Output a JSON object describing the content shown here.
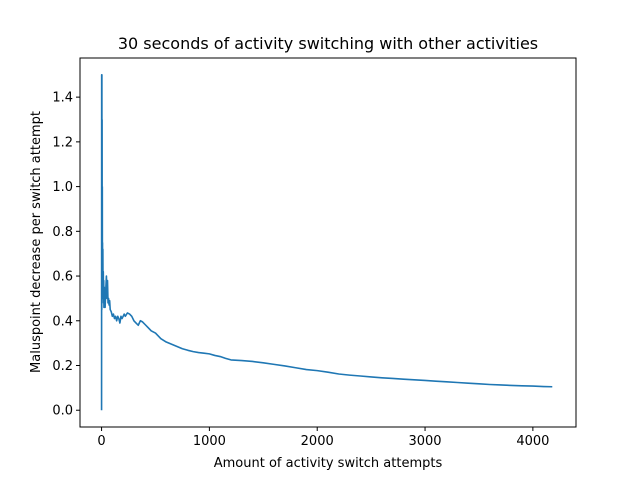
{
  "chart_data": {
    "type": "line",
    "title": "30 seconds of activity switching with other activities",
    "xlabel": "Amount of activity switch attempts",
    "ylabel": "Maluspoint decrease per switch attempt",
    "xlim": [
      -200,
      4400
    ],
    "ylim": [
      -0.075,
      1.575
    ],
    "x_ticks": [
      0,
      1000,
      2000,
      3000,
      4000
    ],
    "x_tick_labels": [
      "0",
      "1000",
      "2000",
      "3000",
      "4000"
    ],
    "y_ticks": [
      0.0,
      0.2,
      0.4,
      0.6,
      0.8,
      1.0,
      1.2,
      1.4
    ],
    "y_tick_labels": [
      "0.0",
      "0.2",
      "0.4",
      "0.6",
      "0.8",
      "1.0",
      "1.2",
      "1.4"
    ],
    "grid": false,
    "series": [
      {
        "color": "#1f77b4",
        "x": [
          0,
          1,
          2,
          3,
          4,
          5,
          6,
          7,
          8,
          9,
          10,
          12,
          14,
          16,
          18,
          20,
          22,
          25,
          28,
          30,
          33,
          36,
          40,
          45,
          50,
          55,
          60,
          65,
          70,
          75,
          80,
          90,
          100,
          110,
          120,
          130,
          140,
          150,
          160,
          170,
          180,
          190,
          200,
          210,
          220,
          240,
          260,
          280,
          300,
          320,
          340,
          360,
          380,
          400,
          430,
          460,
          500,
          550,
          600,
          650,
          700,
          750,
          800,
          850,
          900,
          950,
          1000,
          1050,
          1100,
          1150,
          1200,
          1300,
          1400,
          1500,
          1600,
          1700,
          1800,
          1900,
          2000,
          2100,
          2200,
          2300,
          2400,
          2500,
          2600,
          2700,
          2800,
          2900,
          3000,
          3100,
          3200,
          3300,
          3400,
          3500,
          3600,
          3700,
          3800,
          3900,
          4000,
          4100,
          4180
        ],
        "y": [
          0.0,
          1.5,
          0.45,
          1.5,
          0.7,
          1.3,
          0.5,
          1.0,
          0.55,
          0.75,
          0.5,
          0.72,
          0.5,
          0.62,
          0.48,
          0.58,
          0.46,
          0.55,
          0.47,
          0.52,
          0.46,
          0.5,
          0.55,
          0.6,
          0.5,
          0.58,
          0.48,
          0.5,
          0.47,
          0.49,
          0.45,
          0.44,
          0.42,
          0.43,
          0.41,
          0.42,
          0.4,
          0.42,
          0.41,
          0.39,
          0.42,
          0.41,
          0.42,
          0.43,
          0.42,
          0.435,
          0.43,
          0.42,
          0.4,
          0.39,
          0.38,
          0.4,
          0.395,
          0.385,
          0.37,
          0.355,
          0.345,
          0.32,
          0.305,
          0.295,
          0.285,
          0.275,
          0.268,
          0.262,
          0.258,
          0.255,
          0.252,
          0.245,
          0.24,
          0.232,
          0.225,
          0.222,
          0.218,
          0.212,
          0.205,
          0.198,
          0.19,
          0.182,
          0.177,
          0.17,
          0.162,
          0.157,
          0.153,
          0.149,
          0.145,
          0.142,
          0.139,
          0.136,
          0.133,
          0.13,
          0.127,
          0.124,
          0.121,
          0.118,
          0.115,
          0.113,
          0.111,
          0.109,
          0.108,
          0.106,
          0.105
        ]
      }
    ]
  }
}
